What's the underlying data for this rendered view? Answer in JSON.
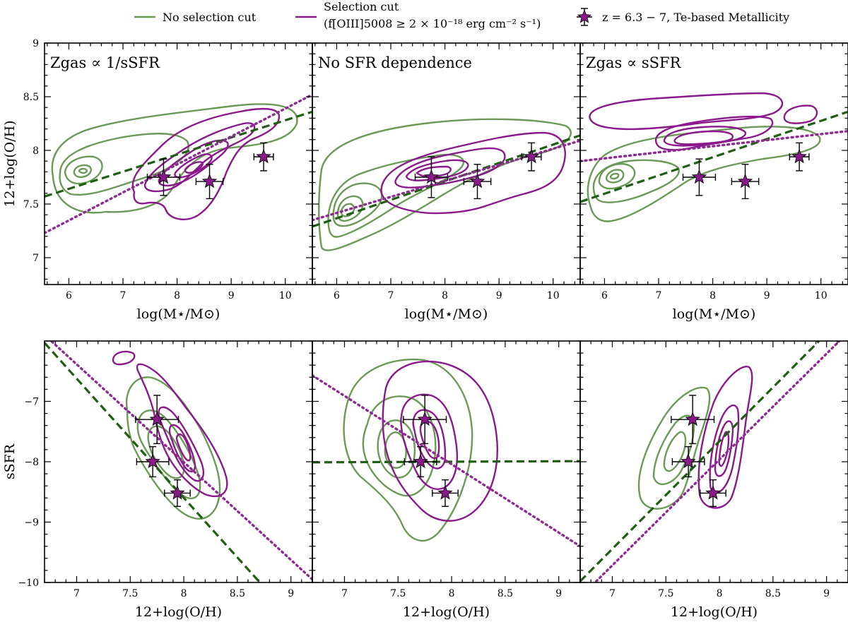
{
  "colors": {
    "green": "#6b9a57",
    "green_fit": "#1f5f12",
    "purple": "#8a1a8c",
    "purple_fit": "#8e2a91"
  },
  "legend": {
    "no_cut": "No selection cut",
    "cut_line1": "Selection cut",
    "cut_line2": "(f[OIII]5008 ≥ 2 × 10⁻¹⁸ erg cm⁻² s⁻¹)",
    "obs": "z = 6.3 − 7, Te-based Metallicity"
  },
  "chart_data": [
    {
      "type": "scatter",
      "panel": "top-left",
      "annotation": "Zgas ∝ 1/sSFR",
      "xlabel": "log(M⋆/M⊙)",
      "ylabel": "12+log(O/H)",
      "xlim": [
        5.55,
        10.5
      ],
      "ylim": [
        6.75,
        9.0
      ],
      "xticks": [
        6,
        7,
        8,
        9,
        10
      ],
      "yticks": [
        7.0,
        7.5,
        8.0,
        8.5,
        9.0
      ],
      "fits": {
        "no_cut": [
          [
            5.55,
            7.57
          ],
          [
            10.5,
            8.36
          ]
        ],
        "cut": [
          [
            5.55,
            7.23
          ],
          [
            10.5,
            8.52
          ]
        ]
      },
      "points": [
        {
          "x": 7.75,
          "y": 7.75,
          "xerr": 0.3,
          "yerr": 0.17
        },
        {
          "x": 8.6,
          "y": 7.71,
          "xerr": 0.25,
          "yerr": 0.16
        },
        {
          "x": 9.6,
          "y": 7.94,
          "xerr": 0.18,
          "yerr": 0.13
        }
      ]
    },
    {
      "type": "scatter",
      "panel": "top-middle",
      "annotation": "No SFR dependence",
      "xlabel": "log(M⋆/M⊙)",
      "ylabel": "",
      "xlim": [
        5.55,
        10.5
      ],
      "ylim": [
        6.75,
        9.0
      ],
      "xticks": [
        6,
        7,
        8,
        9,
        10
      ],
      "yticks": [
        7.0,
        7.5,
        8.0,
        8.5,
        9.0
      ],
      "fits": {
        "no_cut": [
          [
            5.55,
            7.29
          ],
          [
            10.5,
            8.14
          ]
        ],
        "cut": [
          [
            5.55,
            7.35
          ],
          [
            10.5,
            8.09
          ]
        ]
      },
      "points": [
        {
          "x": 7.75,
          "y": 7.75,
          "xerr": 0.3,
          "yerr": 0.19
        },
        {
          "x": 8.6,
          "y": 7.71,
          "xerr": 0.25,
          "yerr": 0.16
        },
        {
          "x": 9.6,
          "y": 7.94,
          "xerr": 0.18,
          "yerr": 0.13
        }
      ]
    },
    {
      "type": "scatter",
      "panel": "top-right",
      "annotation": "Zgas ∝ sSFR",
      "xlabel": "log(M⋆/M⊙)",
      "ylabel": "",
      "xlim": [
        5.55,
        10.5
      ],
      "ylim": [
        6.75,
        9.0
      ],
      "xticks": [
        6,
        7,
        8,
        9,
        10
      ],
      "yticks": [
        7.0,
        7.5,
        8.0,
        8.5,
        9.0
      ],
      "fits": {
        "no_cut": [
          [
            5.55,
            7.52
          ],
          [
            10.5,
            8.36
          ]
        ],
        "cut": [
          [
            5.55,
            7.9
          ],
          [
            10.5,
            8.18
          ]
        ]
      },
      "points": [
        {
          "x": 7.75,
          "y": 7.75,
          "xerr": 0.3,
          "yerr": 0.17
        },
        {
          "x": 8.6,
          "y": 7.71,
          "xerr": 0.25,
          "yerr": 0.16
        },
        {
          "x": 9.6,
          "y": 7.94,
          "xerr": 0.18,
          "yerr": 0.13
        }
      ]
    },
    {
      "type": "scatter",
      "panel": "bottom-left",
      "xlabel": "12+log(O/H)",
      "ylabel": "sSFR",
      "xlim": [
        6.7,
        9.2
      ],
      "ylim": [
        -10.0,
        -6.0
      ],
      "xticks": [
        7.0,
        7.5,
        8.0,
        8.5,
        9.0
      ],
      "yticks": [
        -10,
        -9,
        -8,
        -7
      ],
      "fits": {
        "no_cut": [
          [
            6.7,
            -6.03
          ],
          [
            8.71,
            -10.0
          ]
        ],
        "cut": [
          [
            6.7,
            -5.9
          ],
          [
            9.2,
            -9.95
          ]
        ]
      },
      "points": [
        {
          "x": 7.75,
          "y": -7.3,
          "xerr": 0.2,
          "yerr": 0.4
        },
        {
          "x": 7.71,
          "y": -8.0,
          "xerr": 0.15,
          "yerr": 0.25
        },
        {
          "x": 7.94,
          "y": -8.52,
          "xerr": 0.12,
          "yerr": 0.22
        }
      ]
    },
    {
      "type": "scatter",
      "panel": "bottom-middle",
      "xlabel": "12+log(O/H)",
      "ylabel": "",
      "xlim": [
        6.7,
        9.2
      ],
      "ylim": [
        -10.0,
        -6.0
      ],
      "xticks": [
        7.0,
        7.5,
        8.0,
        8.5,
        9.0
      ],
      "yticks": [
        -10,
        -9,
        -8,
        -7
      ],
      "fits": {
        "no_cut": [
          [
            6.7,
            -8.01
          ],
          [
            9.2,
            -7.99
          ]
        ],
        "cut": [
          [
            6.7,
            -6.57
          ],
          [
            9.2,
            -9.4
          ]
        ]
      },
      "points": [
        {
          "x": 7.75,
          "y": -7.3,
          "xerr": 0.2,
          "yerr": 0.4
        },
        {
          "x": 7.71,
          "y": -8.0,
          "xerr": 0.15,
          "yerr": 0.25
        },
        {
          "x": 7.94,
          "y": -8.52,
          "xerr": 0.12,
          "yerr": 0.22
        }
      ]
    },
    {
      "type": "scatter",
      "panel": "bottom-right",
      "xlabel": "12+log(O/H)",
      "ylabel": "",
      "xlim": [
        6.7,
        9.2
      ],
      "ylim": [
        -10.0,
        -6.0
      ],
      "xticks": [
        7.0,
        7.5,
        8.0,
        8.5,
        9.0
      ],
      "yticks": [
        -10,
        -9,
        -8,
        -7
      ],
      "fits": {
        "no_cut": [
          [
            6.7,
            -9.98
          ],
          [
            8.93,
            -6.0
          ]
        ],
        "cut": [
          [
            6.85,
            -9.98
          ],
          [
            9.12,
            -6.0
          ]
        ]
      },
      "points": [
        {
          "x": 7.75,
          "y": -7.3,
          "xerr": 0.2,
          "yerr": 0.4
        },
        {
          "x": 7.71,
          "y": -8.0,
          "xerr": 0.15,
          "yerr": 0.25
        },
        {
          "x": 7.94,
          "y": -8.52,
          "xerr": 0.12,
          "yerr": 0.22
        }
      ]
    }
  ]
}
